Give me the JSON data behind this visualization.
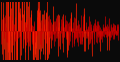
{
  "background_color": "#0a0a0a",
  "bar_color": "#cc0000",
  "highlight_color": "#ff2200",
  "n_points": 500,
  "seed": 7,
  "figsize": [
    1.2,
    0.62
  ],
  "dpi": 100,
  "ylim": [
    -4.5,
    4.5
  ],
  "linewidth": 0.5
}
